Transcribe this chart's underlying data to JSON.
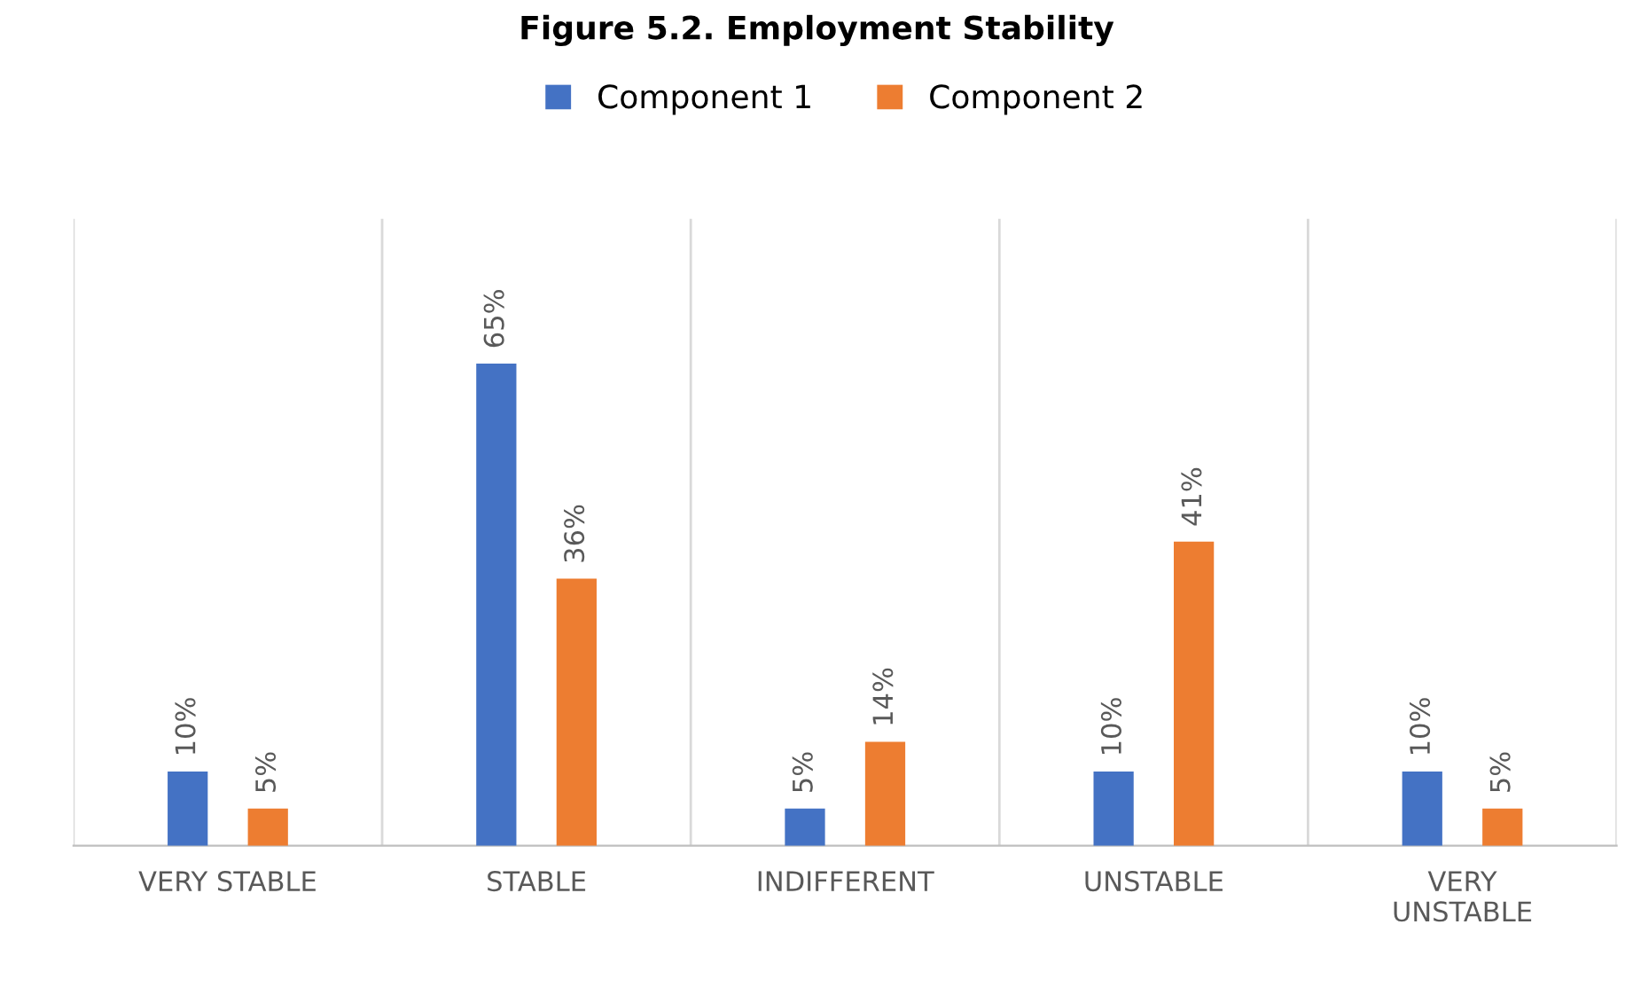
{
  "chart_data": {
    "type": "bar",
    "title": "Figure 5.2. Employment Stability",
    "categories": [
      "VERY STABLE",
      "STABLE",
      "INDIFFERENT",
      "UNSTABLE",
      "VERY UNSTABLE"
    ],
    "series": [
      {
        "name": "Component 1",
        "color": "#4472c4",
        "values": [
          10,
          65,
          5,
          10,
          10
        ],
        "value_labels": [
          "10%",
          "65%",
          "5%",
          "10%",
          "10%"
        ]
      },
      {
        "name": "Component 2",
        "color": "#ed7d31",
        "values": [
          5,
          36,
          14,
          41,
          5
        ],
        "value_labels": [
          "5%",
          "36%",
          "14%",
          "41%",
          "5%"
        ]
      }
    ],
    "grid": "x",
    "legend": "top"
  }
}
